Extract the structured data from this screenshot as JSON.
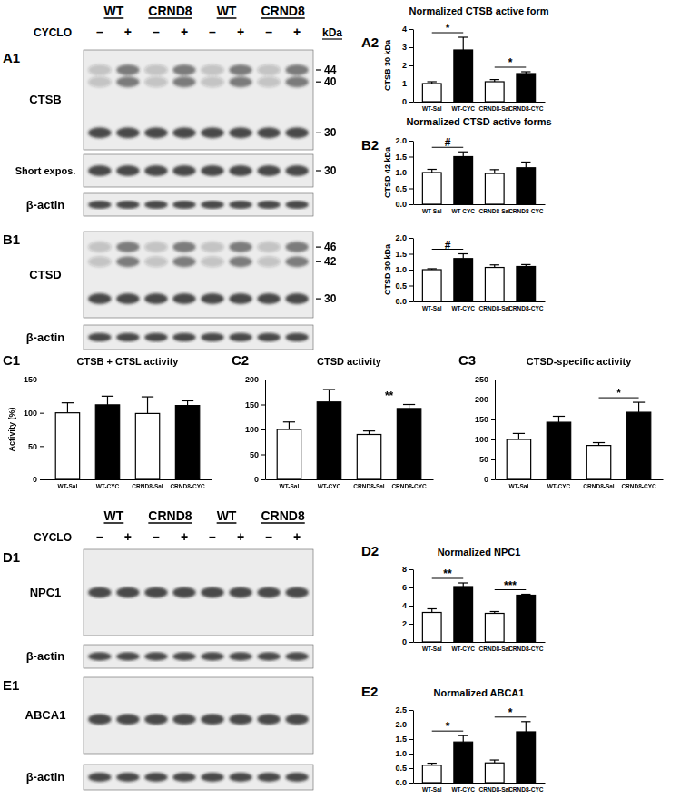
{
  "chart_data": [
    {
      "type": "bar",
      "panel": "A2",
      "title": "Normalized CTSB active form",
      "y_label": "CTSB 30 kDa",
      "categories": [
        "WT-Sal",
        "WT-CYC",
        "CRND8-Sal",
        "CRND8-CYC"
      ],
      "values": [
        1.0,
        2.85,
        1.1,
        1.55
      ],
      "errors": [
        0.1,
        0.7,
        0.12,
        0.1
      ],
      "colors": [
        "#ffffff",
        "#000000",
        "#ffffff",
        "#000000"
      ],
      "ylim": [
        0,
        4
      ],
      "yticks": [
        0,
        1,
        2,
        3,
        4
      ],
      "annotations": [
        {
          "from": 0,
          "to": 1,
          "label": "*"
        },
        {
          "from": 2,
          "to": 3,
          "label": "*"
        }
      ]
    },
    {
      "type": "bar",
      "panel": "B2",
      "title": "Normalized CTSD active forms",
      "y_label": "CTSD 42 kDa",
      "categories": [
        "WT-Sal",
        "WT-CYC",
        "CRND8-Sal",
        "CRND8-CYC"
      ],
      "values": [
        1.0,
        1.5,
        0.97,
        1.15
      ],
      "errors": [
        0.1,
        0.15,
        0.12,
        0.18
      ],
      "colors": [
        "#ffffff",
        "#000000",
        "#ffffff",
        "#000000"
      ],
      "ylim": [
        0,
        2
      ],
      "yticks": [
        {
          "value": 0,
          "label": "0.0"
        },
        {
          "value": 0.5,
          "label": "0.5"
        },
        {
          "value": 1,
          "label": "1.0"
        },
        {
          "value": 1.5,
          "label": "1.5"
        },
        {
          "value": 2,
          "label": "2.0"
        }
      ],
      "annotations": [
        {
          "from": 0,
          "to": 1,
          "label": "#"
        }
      ]
    },
    {
      "type": "bar",
      "y_label": "CTSD 30 kDa",
      "categories": [
        "WT-Sal",
        "WT-CYC",
        "CRND8-Sal",
        "CRND8-CYC"
      ],
      "values": [
        1.0,
        1.35,
        1.07,
        1.1
      ],
      "errors": [
        0.03,
        0.15,
        0.08,
        0.06
      ],
      "colors": [
        "#ffffff",
        "#000000",
        "#ffffff",
        "#000000"
      ],
      "ylim": [
        0,
        2
      ],
      "yticks": [
        {
          "value": 0,
          "label": "0.0"
        },
        {
          "value": 0.5,
          "label": "0.5"
        },
        {
          "value": 1,
          "label": "1.0"
        },
        {
          "value": 1.5,
          "label": "1.5"
        },
        {
          "value": 2,
          "label": "2.0"
        }
      ],
      "annotations": [
        {
          "from": 0,
          "to": 1,
          "label": "#"
        }
      ]
    },
    {
      "type": "bar",
      "panel": "C1",
      "title": "CTSB + CTSL activity",
      "y_label": "Activity (%)",
      "categories": [
        "WT-Sal",
        "WT-CYC",
        "CRND8-Sal",
        "CRND8-CYC"
      ],
      "values": [
        100,
        112,
        99,
        111
      ],
      "errors": [
        15,
        13,
        25,
        7
      ],
      "colors": [
        "#ffffff",
        "#000000",
        "#ffffff",
        "#000000"
      ],
      "ylim": [
        0,
        150
      ],
      "yticks": [
        0,
        50,
        100,
        150
      ],
      "annotations": []
    },
    {
      "type": "bar",
      "panel": "C2",
      "title": "CTSD activity",
      "categories": [
        "WT-Sal",
        "WT-CYC",
        "CRND8-Sal",
        "CRND8-CYC"
      ],
      "values": [
        100,
        155,
        90,
        142
      ],
      "errors": [
        15,
        25,
        7,
        8
      ],
      "colors": [
        "#ffffff",
        "#000000",
        "#ffffff",
        "#000000"
      ],
      "ylim": [
        0,
        200
      ],
      "yticks": [
        0,
        50,
        100,
        150,
        200
      ],
      "annotations": [
        {
          "from": 2,
          "to": 3,
          "label": "**"
        }
      ]
    },
    {
      "type": "bar",
      "panel": "C3",
      "title": "CTSD-specific activity",
      "categories": [
        "WT-Sal",
        "WT-CYC",
        "CRND8-Sal",
        "CRND8-CYC"
      ],
      "values": [
        100,
        143,
        85,
        168
      ],
      "errors": [
        15,
        15,
        7,
        25
      ],
      "colors": [
        "#ffffff",
        "#000000",
        "#ffffff",
        "#000000"
      ],
      "ylim": [
        0,
        250
      ],
      "yticks": [
        0,
        50,
        100,
        150,
        200,
        250
      ],
      "annotations": [
        {
          "from": 2,
          "to": 3,
          "label": "*"
        }
      ]
    },
    {
      "type": "bar",
      "panel": "D2",
      "title": "Normalized NPC1",
      "categories": [
        "WT-Sal",
        "WT-CYC",
        "CRND8-Sal",
        "CRND8-CYC"
      ],
      "values": [
        3.25,
        6.1,
        3.15,
        5.15
      ],
      "errors": [
        0.4,
        0.4,
        0.2,
        0.1
      ],
      "colors": [
        "#ffffff",
        "#000000",
        "#ffffff",
        "#000000"
      ],
      "ylim": [
        0,
        8
      ],
      "yticks": [
        0,
        2,
        4,
        6,
        8
      ],
      "annotations": [
        {
          "from": 0,
          "to": 1,
          "label": "**"
        },
        {
          "from": 2,
          "to": 3,
          "label": "***"
        }
      ]
    },
    {
      "type": "bar",
      "panel": "E2",
      "title": "Normalized ABCA1",
      "categories": [
        "WT-Sal",
        "WT-CYC",
        "CRND8-Sal",
        "CRND8-CYC"
      ],
      "values": [
        0.6,
        1.4,
        0.68,
        1.75
      ],
      "errors": [
        0.07,
        0.22,
        0.1,
        0.35
      ],
      "colors": [
        "#ffffff",
        "#000000",
        "#ffffff",
        "#000000"
      ],
      "ylim": [
        0,
        2.5
      ],
      "yticks": [
        {
          "value": 0,
          "label": "0.0"
        },
        {
          "value": 0.5,
          "label": "0.5"
        },
        {
          "value": 1,
          "label": "1.0"
        },
        {
          "value": 1.5,
          "label": "1.5"
        },
        {
          "value": 2,
          "label": "2.0"
        },
        {
          "value": 2.5,
          "label": "2.5"
        }
      ],
      "annotations": [
        {
          "from": 0,
          "to": 1,
          "label": "*"
        },
        {
          "from": 2,
          "to": 3,
          "label": "*"
        }
      ]
    }
  ],
  "blots": [
    {
      "panel": "A1",
      "header": {
        "groups": [
          "WT",
          "CRND8",
          "WT",
          "CRND8"
        ],
        "treatment": "CYCLO",
        "lanes": [
          "–",
          "+",
          "–",
          "+",
          "–",
          "+",
          "–",
          "+"
        ],
        "unit": "kDa"
      },
      "rows": [
        {
          "label": "CTSB",
          "markers": [
            44,
            40,
            30
          ]
        },
        {
          "label": "Short expos.",
          "markers": [
            30
          ]
        },
        {
          "label": "β-actin"
        }
      ]
    },
    {
      "panel": "B1",
      "rows": [
        {
          "label": "CTSD",
          "markers": [
            46,
            42,
            30
          ]
        },
        {
          "label": "β-actin"
        }
      ]
    },
    {
      "panel": "D1",
      "header": {
        "groups": [
          "WT",
          "CRND8",
          "WT",
          "CRND8"
        ],
        "treatment": "CYCLO",
        "lanes": [
          "–",
          "+",
          "–",
          "+",
          "–",
          "+",
          "–",
          "+"
        ]
      },
      "rows": [
        {
          "label": "NPC1"
        },
        {
          "label": "β-actin"
        }
      ]
    },
    {
      "panel": "E1",
      "rows": [
        {
          "label": "ABCA1"
        },
        {
          "label": "β-actin"
        }
      ]
    }
  ]
}
